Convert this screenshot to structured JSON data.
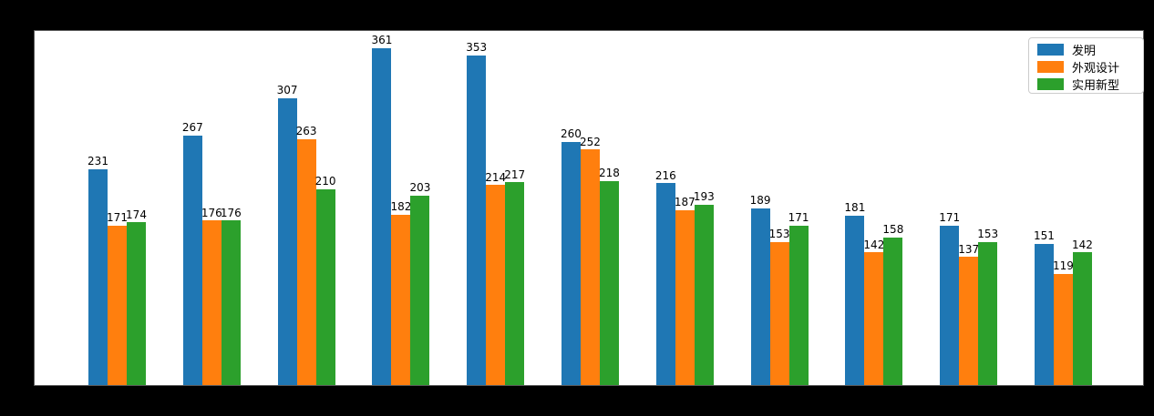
{
  "figure": {
    "background_color": "#000000",
    "plot_background_color": "#ffffff",
    "spine_color": "#5a5a5a",
    "label_text_color": "#000000"
  },
  "legend": {
    "position": "upper-right",
    "border_color": "#cccccc",
    "background_color": "#ffffff"
  },
  "chart_data": {
    "type": "bar",
    "title": "",
    "xlabel": "",
    "ylabel": "",
    "categories": [
      "",
      "",
      "",
      "",
      "",
      "",
      "",
      "",
      "",
      "",
      ""
    ],
    "series": [
      {
        "name": "发明",
        "color": "#1f77b4",
        "values": [
          231,
          267,
          307,
          361,
          353,
          260,
          216,
          189,
          181,
          171,
          151
        ]
      },
      {
        "name": "外观设计",
        "color": "#ff7f0e",
        "values": [
          171,
          176,
          263,
          182,
          214,
          252,
          187,
          153,
          142,
          137,
          119
        ]
      },
      {
        "name": "实用新型",
        "color": "#2ca02c",
        "values": [
          174,
          176,
          210,
          203,
          217,
          218,
          193,
          171,
          158,
          153,
          142
        ]
      }
    ],
    "ylim": [
      0,
      379
    ],
    "grid": false,
    "bar_value_labels": true,
    "legend_position": "upper right",
    "legend_entries": [
      "发明",
      "外观设计",
      "实用新型"
    ]
  }
}
